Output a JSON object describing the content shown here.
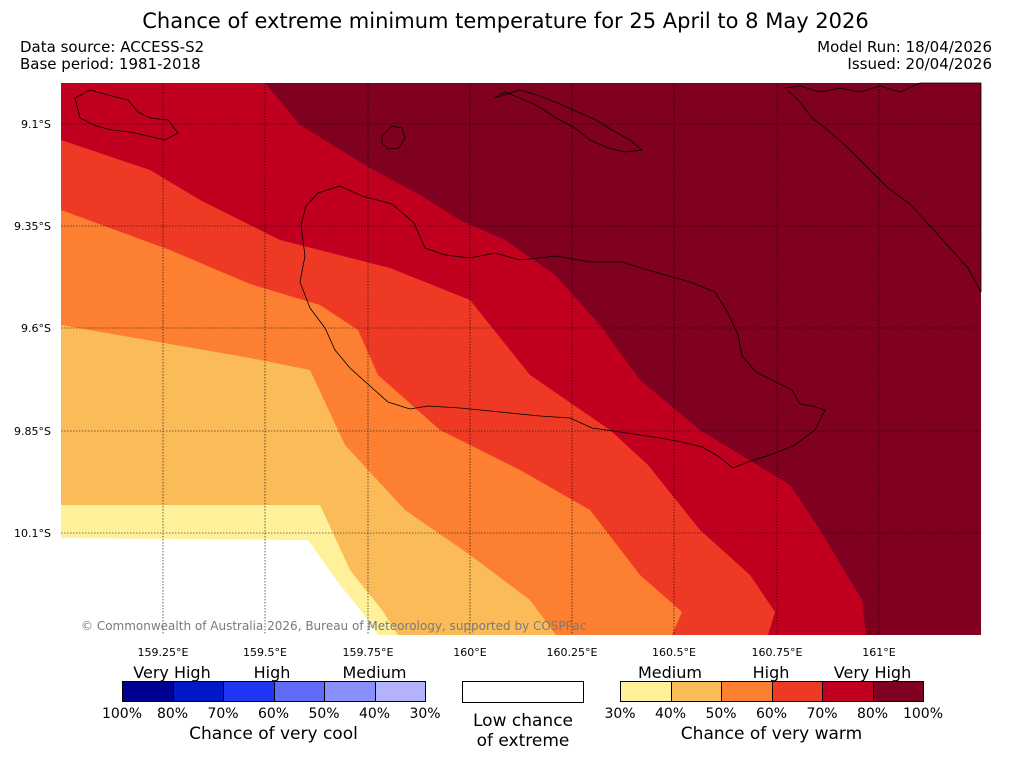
{
  "header": {
    "title": "Chance of extreme minimum temperature for 25 April to 8 May 2026",
    "data_source": "Data source: ACCESS-S2",
    "base_period": "Base period: 1981-2018",
    "model_run": "Model Run: 18/04/2026",
    "issued": "Issued: 20/04/2026"
  },
  "map": {
    "latitudes": [
      "9.1°S",
      "9.35°S",
      "9.6°S",
      "9.85°S",
      "10.1°S"
    ],
    "longitudes": [
      "159.25°E",
      "159.5°E",
      "159.75°E",
      "160°E",
      "160.25°E",
      "160.5°E",
      "160.75°E",
      "161°E"
    ],
    "copyright": "© Commonwealth of Australia 2026, Bureau of Meteorology, supported by COSPPac",
    "colors": {
      "warm_30_40": "#fff09a",
      "warm_40_50": "#fbbb58",
      "warm_50_60": "#fc7f32",
      "warm_60_70": "#ee3a24",
      "warm_70_80": "#c10020",
      "warm_80_100": "#800020"
    }
  },
  "legend": {
    "cool": {
      "headings": [
        "Very High",
        "High",
        "Medium"
      ],
      "ticks": [
        "100%",
        "80%",
        "70%",
        "60%",
        "50%",
        "40%",
        "30%"
      ],
      "caption": "Chance of very cool",
      "colors": [
        "#000090",
        "#0018c8",
        "#1f36f4",
        "#5e6cf8",
        "#8b8ffb",
        "#b3b2fd"
      ]
    },
    "low": {
      "caption_line1": "Low chance",
      "caption_line2": "of extreme"
    },
    "warm": {
      "headings": [
        "Medium",
        "High",
        "Very High"
      ],
      "ticks": [
        "30%",
        "40%",
        "50%",
        "60%",
        "70%",
        "80%",
        "100%"
      ],
      "caption": "Chance of very warm",
      "colors": [
        "#fff09a",
        "#fbbb58",
        "#fc7f32",
        "#ee3a24",
        "#c10020",
        "#800020"
      ]
    }
  }
}
